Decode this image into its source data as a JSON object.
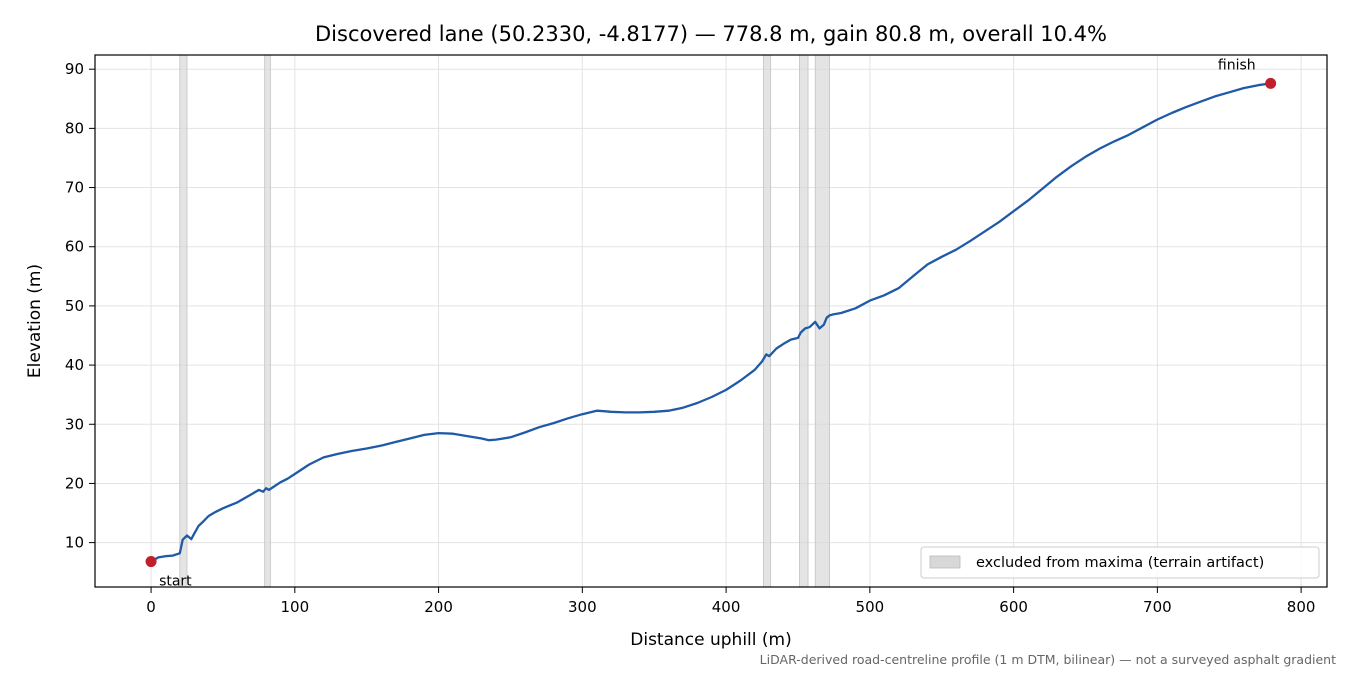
{
  "chart_data": {
    "type": "line",
    "title": "Discovered lane (50.2330, -4.8177) — 778.8 m, gain 80.8 m, overall 10.4%",
    "xlabel": "Distance uphill (m)",
    "ylabel": "Elevation (m)",
    "footnote": "LiDAR-derived road-centreline profile (1 m DTM, bilinear) — not a surveyed asphalt gradient",
    "xlim": [
      -39,
      818
    ],
    "ylim": [
      2.5,
      92.4
    ],
    "xticks": [
      0,
      100,
      200,
      300,
      400,
      500,
      600,
      700,
      800
    ],
    "yticks": [
      10,
      20,
      30,
      40,
      50,
      60,
      70,
      80,
      90
    ],
    "grid": true,
    "line_color": "#1f5aa8",
    "marker_color": "#c0202a",
    "band_color": "#d8d8d8",
    "legend": {
      "label": "excluded from maxima (terrain artifact)",
      "position": "lower-right"
    },
    "excluded_bands": [
      [
        20,
        25
      ],
      [
        79,
        83
      ],
      [
        426,
        431
      ],
      [
        451,
        457
      ],
      [
        462,
        472
      ]
    ],
    "markers": [
      {
        "label": "start",
        "x": 0,
        "y": 6.8
      },
      {
        "label": "finish",
        "x": 778.8,
        "y": 87.6
      }
    ],
    "series": [
      {
        "x": [
          0,
          5,
          10,
          15,
          20,
          22,
          25,
          28,
          30,
          33,
          36,
          40,
          45,
          50,
          55,
          60,
          65,
          70,
          75,
          78,
          80,
          82,
          85,
          90,
          95,
          100,
          110,
          120,
          130,
          140,
          150,
          160,
          170,
          180,
          190,
          200,
          210,
          220,
          230,
          235,
          240,
          250,
          260,
          270,
          280,
          290,
          300,
          310,
          315,
          320,
          330,
          340,
          350,
          360,
          370,
          380,
          390,
          400,
          410,
          420,
          425,
          428,
          430,
          435,
          440,
          445,
          450,
          452,
          455,
          458,
          462,
          465,
          468,
          470,
          472,
          475,
          480,
          490,
          500,
          510,
          520,
          530,
          540,
          550,
          560,
          570,
          580,
          590,
          600,
          610,
          620,
          630,
          640,
          650,
          660,
          670,
          680,
          690,
          700,
          710,
          720,
          730,
          740,
          750,
          760,
          770,
          778.8
        ],
        "values": [
          6.8,
          7.5,
          7.7,
          7.8,
          8.2,
          10.5,
          11.2,
          10.6,
          11.5,
          12.8,
          13.5,
          14.5,
          15.2,
          15.8,
          16.3,
          16.8,
          17.5,
          18.2,
          18.9,
          18.6,
          19.2,
          18.9,
          19.4,
          20.2,
          20.8,
          21.6,
          23.2,
          24.4,
          25.0,
          25.5,
          25.9,
          26.4,
          27.0,
          27.6,
          28.2,
          28.5,
          28.4,
          28.0,
          27.6,
          27.3,
          27.4,
          27.8,
          28.6,
          29.5,
          30.2,
          31.0,
          31.7,
          32.3,
          32.2,
          32.1,
          32.0,
          32.0,
          32.1,
          32.3,
          32.8,
          33.6,
          34.6,
          35.8,
          37.4,
          39.2,
          40.6,
          41.8,
          41.5,
          42.8,
          43.6,
          44.3,
          44.6,
          45.5,
          46.2,
          46.4,
          47.3,
          46.2,
          46.8,
          48.0,
          48.4,
          48.6,
          48.8,
          49.6,
          50.9,
          51.8,
          53.0,
          55.0,
          57.0,
          58.3,
          59.5,
          61.0,
          62.6,
          64.2,
          66.0,
          67.8,
          69.8,
          71.8,
          73.6,
          75.2,
          76.6,
          77.8,
          78.9,
          80.2,
          81.5,
          82.6,
          83.6,
          84.5,
          85.4,
          86.1,
          86.8,
          87.3,
          87.6
        ]
      }
    ]
  }
}
